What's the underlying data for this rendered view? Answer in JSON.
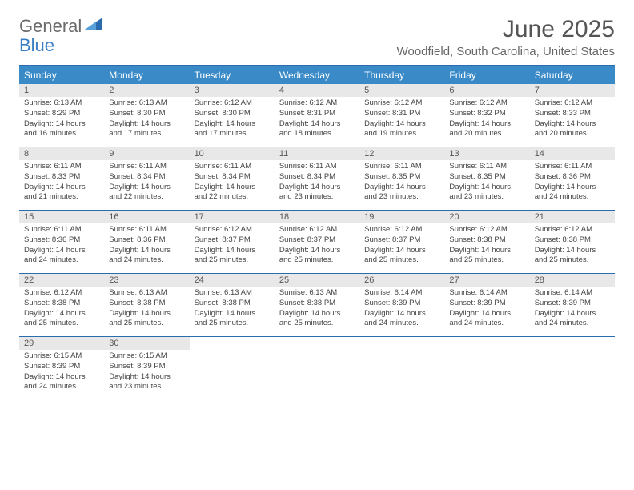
{
  "logo": {
    "text_general": "General",
    "text_blue": "Blue",
    "accent_color": "#2a6cae"
  },
  "title": "June 2025",
  "location": "Woodfield, South Carolina, United States",
  "colors": {
    "header_bar": "#3a8ac8",
    "header_text": "#ffffff",
    "border": "#2a6cae",
    "daynum_bg": "#e8e8e8",
    "daynum_text": "#555555",
    "body_text": "#444444",
    "title_text": "#555555",
    "location_text": "#666666"
  },
  "weekdays": [
    "Sunday",
    "Monday",
    "Tuesday",
    "Wednesday",
    "Thursday",
    "Friday",
    "Saturday"
  ],
  "weeks": [
    [
      {
        "n": "1",
        "sunrise": "6:13 AM",
        "sunset": "8:29 PM",
        "dl_h": "14",
        "dl_m": "16"
      },
      {
        "n": "2",
        "sunrise": "6:13 AM",
        "sunset": "8:30 PM",
        "dl_h": "14",
        "dl_m": "17"
      },
      {
        "n": "3",
        "sunrise": "6:12 AM",
        "sunset": "8:30 PM",
        "dl_h": "14",
        "dl_m": "17"
      },
      {
        "n": "4",
        "sunrise": "6:12 AM",
        "sunset": "8:31 PM",
        "dl_h": "14",
        "dl_m": "18"
      },
      {
        "n": "5",
        "sunrise": "6:12 AM",
        "sunset": "8:31 PM",
        "dl_h": "14",
        "dl_m": "19"
      },
      {
        "n": "6",
        "sunrise": "6:12 AM",
        "sunset": "8:32 PM",
        "dl_h": "14",
        "dl_m": "20"
      },
      {
        "n": "7",
        "sunrise": "6:12 AM",
        "sunset": "8:33 PM",
        "dl_h": "14",
        "dl_m": "20"
      }
    ],
    [
      {
        "n": "8",
        "sunrise": "6:11 AM",
        "sunset": "8:33 PM",
        "dl_h": "14",
        "dl_m": "21"
      },
      {
        "n": "9",
        "sunrise": "6:11 AM",
        "sunset": "8:34 PM",
        "dl_h": "14",
        "dl_m": "22"
      },
      {
        "n": "10",
        "sunrise": "6:11 AM",
        "sunset": "8:34 PM",
        "dl_h": "14",
        "dl_m": "22"
      },
      {
        "n": "11",
        "sunrise": "6:11 AM",
        "sunset": "8:34 PM",
        "dl_h": "14",
        "dl_m": "23"
      },
      {
        "n": "12",
        "sunrise": "6:11 AM",
        "sunset": "8:35 PM",
        "dl_h": "14",
        "dl_m": "23"
      },
      {
        "n": "13",
        "sunrise": "6:11 AM",
        "sunset": "8:35 PM",
        "dl_h": "14",
        "dl_m": "23"
      },
      {
        "n": "14",
        "sunrise": "6:11 AM",
        "sunset": "8:36 PM",
        "dl_h": "14",
        "dl_m": "24"
      }
    ],
    [
      {
        "n": "15",
        "sunrise": "6:11 AM",
        "sunset": "8:36 PM",
        "dl_h": "14",
        "dl_m": "24"
      },
      {
        "n": "16",
        "sunrise": "6:11 AM",
        "sunset": "8:36 PM",
        "dl_h": "14",
        "dl_m": "24"
      },
      {
        "n": "17",
        "sunrise": "6:12 AM",
        "sunset": "8:37 PM",
        "dl_h": "14",
        "dl_m": "25"
      },
      {
        "n": "18",
        "sunrise": "6:12 AM",
        "sunset": "8:37 PM",
        "dl_h": "14",
        "dl_m": "25"
      },
      {
        "n": "19",
        "sunrise": "6:12 AM",
        "sunset": "8:37 PM",
        "dl_h": "14",
        "dl_m": "25"
      },
      {
        "n": "20",
        "sunrise": "6:12 AM",
        "sunset": "8:38 PM",
        "dl_h": "14",
        "dl_m": "25"
      },
      {
        "n": "21",
        "sunrise": "6:12 AM",
        "sunset": "8:38 PM",
        "dl_h": "14",
        "dl_m": "25"
      }
    ],
    [
      {
        "n": "22",
        "sunrise": "6:12 AM",
        "sunset": "8:38 PM",
        "dl_h": "14",
        "dl_m": "25"
      },
      {
        "n": "23",
        "sunrise": "6:13 AM",
        "sunset": "8:38 PM",
        "dl_h": "14",
        "dl_m": "25"
      },
      {
        "n": "24",
        "sunrise": "6:13 AM",
        "sunset": "8:38 PM",
        "dl_h": "14",
        "dl_m": "25"
      },
      {
        "n": "25",
        "sunrise": "6:13 AM",
        "sunset": "8:38 PM",
        "dl_h": "14",
        "dl_m": "25"
      },
      {
        "n": "26",
        "sunrise": "6:14 AM",
        "sunset": "8:39 PM",
        "dl_h": "14",
        "dl_m": "24"
      },
      {
        "n": "27",
        "sunrise": "6:14 AM",
        "sunset": "8:39 PM",
        "dl_h": "14",
        "dl_m": "24"
      },
      {
        "n": "28",
        "sunrise": "6:14 AM",
        "sunset": "8:39 PM",
        "dl_h": "14",
        "dl_m": "24"
      }
    ],
    [
      {
        "n": "29",
        "sunrise": "6:15 AM",
        "sunset": "8:39 PM",
        "dl_h": "14",
        "dl_m": "24"
      },
      {
        "n": "30",
        "sunrise": "6:15 AM",
        "sunset": "8:39 PM",
        "dl_h": "14",
        "dl_m": "23"
      },
      null,
      null,
      null,
      null,
      null
    ]
  ],
  "labels": {
    "sunrise": "Sunrise: ",
    "sunset": "Sunset: ",
    "daylight_prefix": "Daylight: ",
    "hours_word": " hours",
    "and_word": "and ",
    "minutes_word": " minutes."
  }
}
